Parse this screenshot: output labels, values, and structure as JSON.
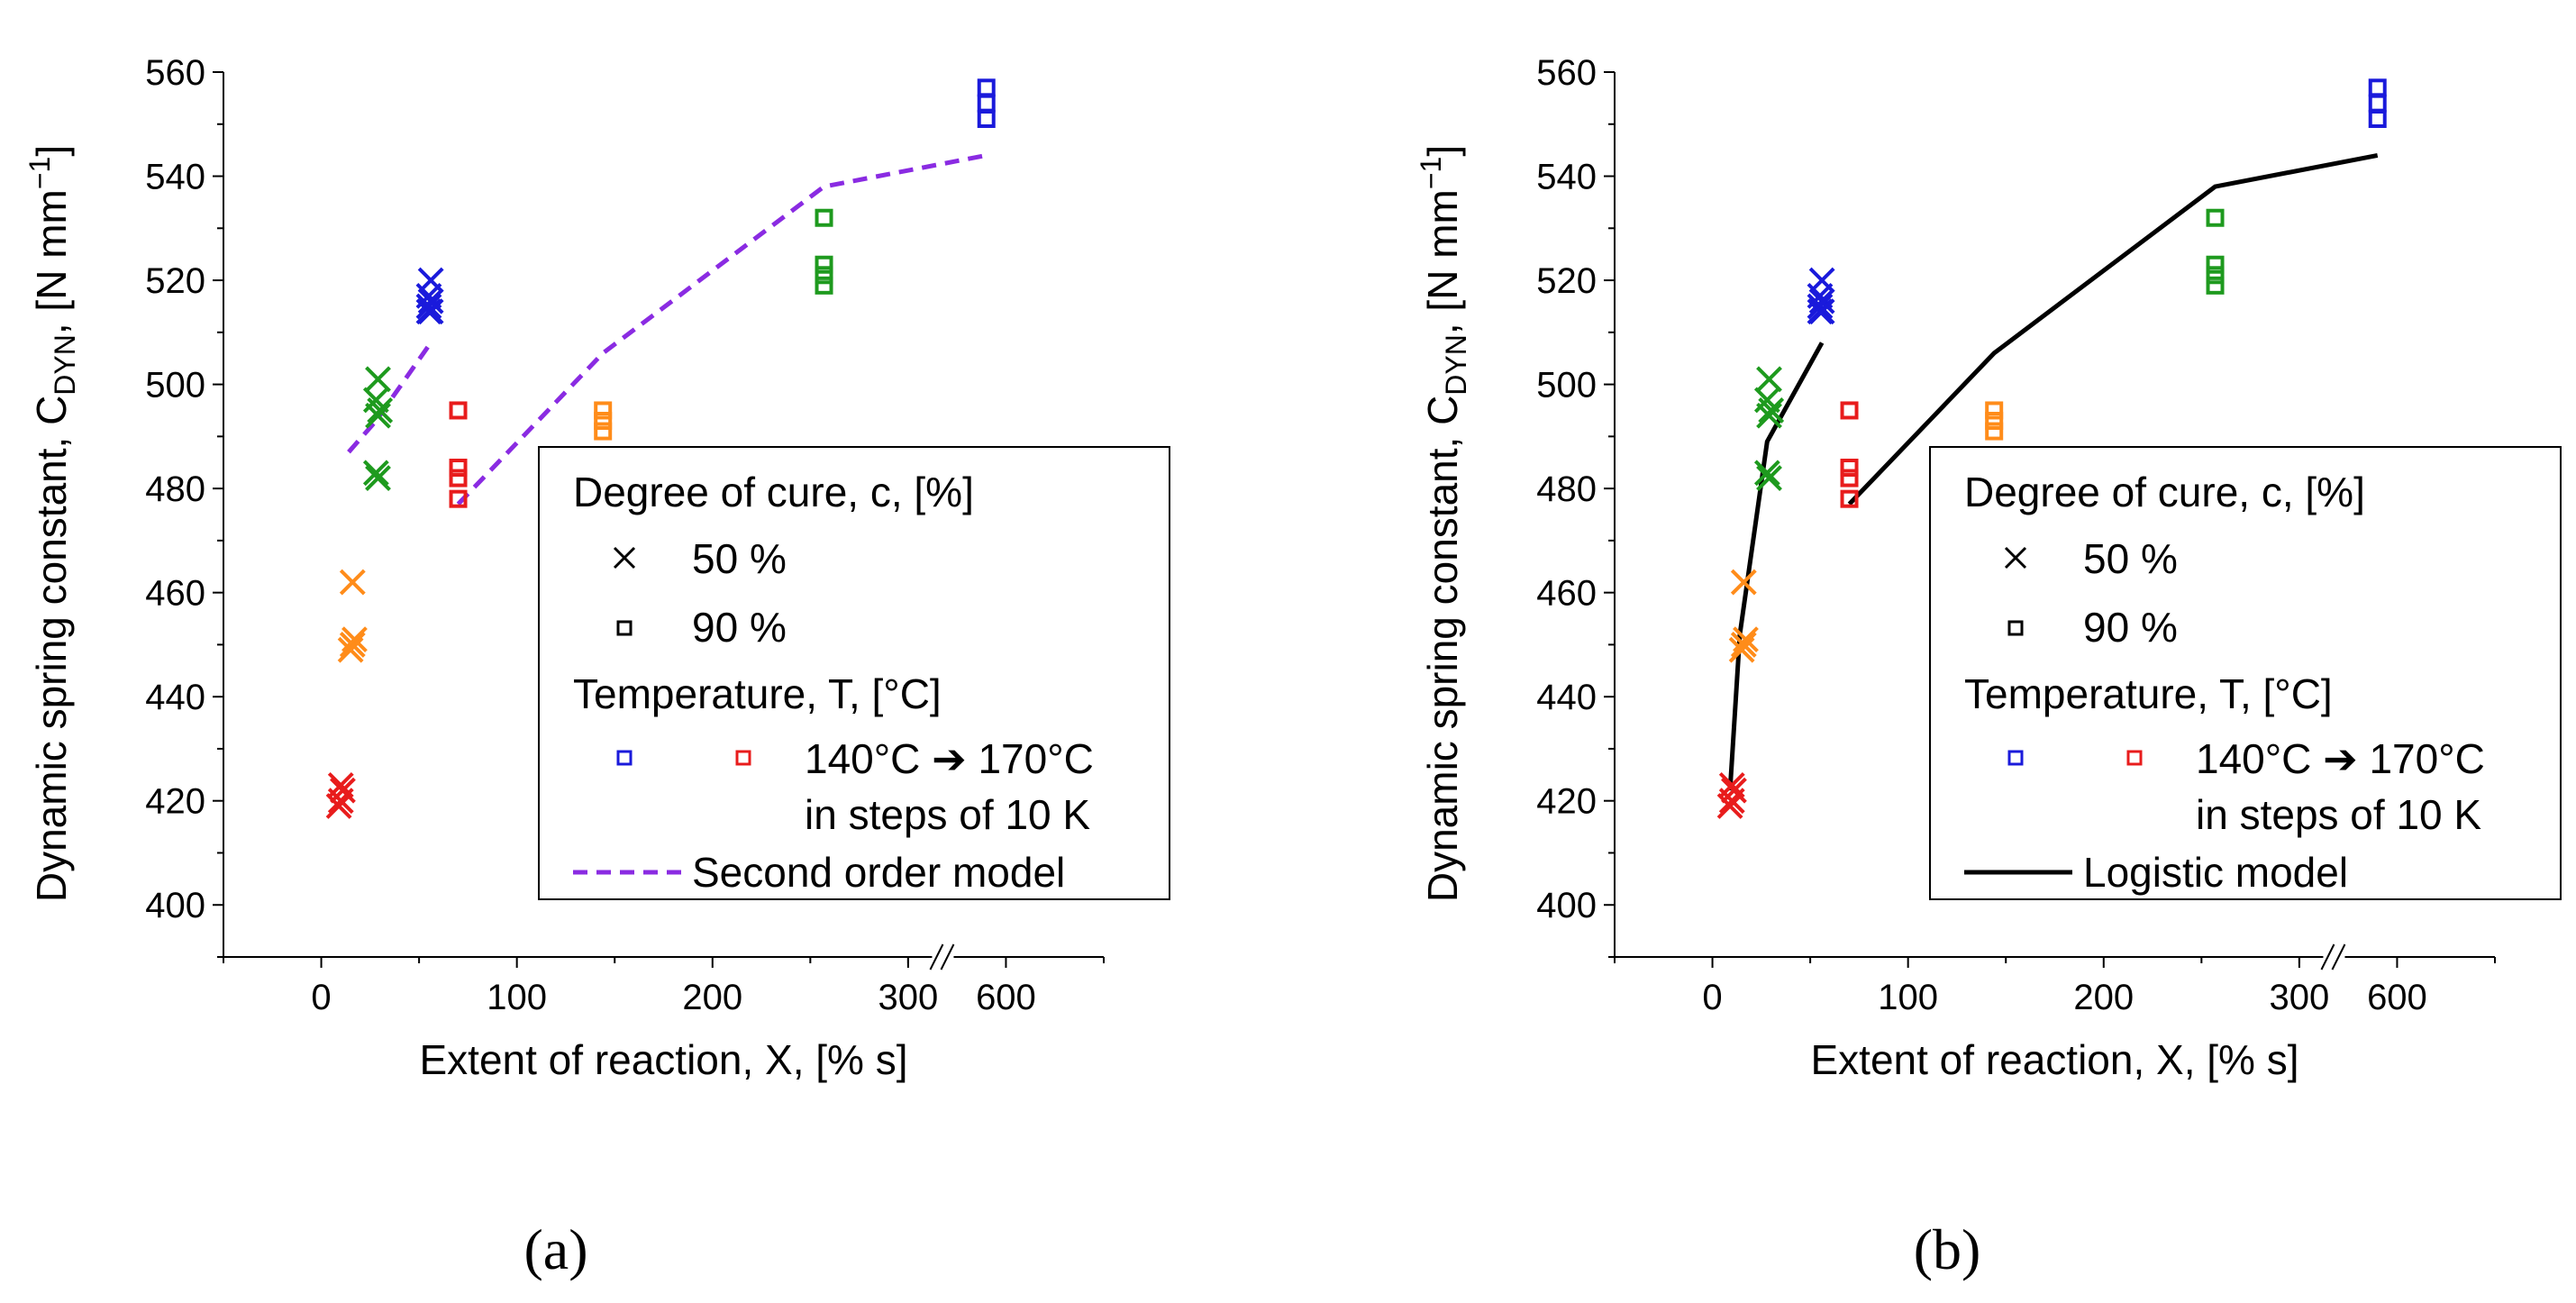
{
  "colors": {
    "140C": "#1a1adb",
    "150C": "#1e9a1e",
    "160C": "#ff8c1a",
    "170C": "#e81c1c",
    "second_order_model": "#8a2be2",
    "logistic_model": "#000000"
  },
  "chart_data": [
    {
      "type": "scatter",
      "panel_label": "(a)",
      "xlabel": "Extent of reaction, X, [% s]",
      "ylabel": "Dynamic spring constant, C_DYN, [N mm^-1]",
      "ylabel_parts": {
        "main": "Dynamic spring constant, C",
        "sub": "DYN",
        "unit": ", [N mm",
        "sup": "−1",
        "close": "]"
      },
      "xlim": [
        -50,
        650
      ],
      "ylim": [
        390,
        560
      ],
      "xticks": [
        0,
        100,
        200,
        300,
        600
      ],
      "xtick_labels": [
        "0",
        "100",
        "200",
        "300",
        "600"
      ],
      "yticks": [
        400,
        420,
        440,
        460,
        480,
        500,
        520,
        540,
        560
      ],
      "axis_break": "between 300 and 600",
      "legend": {
        "placement": "lower-right",
        "title_cure": "Degree of cure, c, [%]",
        "cure_50": "50 %",
        "cure_90": "90 %",
        "title_temp": "Temperature, T, [°C]",
        "temp_range": "140°C ➔ 170°C",
        "temp_steps": "in steps of 10 K",
        "model": "Second order model"
      },
      "series": [
        {
          "color": "#e81c1c",
          "marker": "x",
          "x": [
            9,
            10,
            11,
            10
          ],
          "y": [
            419,
            420,
            422,
            423
          ]
        },
        {
          "color": "#ff8c1a",
          "marker": "x",
          "x": [
            16,
            15,
            16,
            17
          ],
          "y": [
            462,
            449,
            450,
            451
          ]
        },
        {
          "color": "#1e9a1e",
          "marker": "x",
          "x": [
            29,
            28,
            30,
            29,
            28,
            29
          ],
          "y": [
            501,
            497,
            495,
            494,
            483,
            482
          ]
        },
        {
          "color": "#1a1adb",
          "marker": "x",
          "x": [
            56,
            55,
            56,
            55,
            56,
            55
          ],
          "y": [
            520,
            517,
            516,
            515,
            514,
            514
          ]
        },
        {
          "color": "#e81c1c",
          "marker": "square",
          "x": [
            70,
            70,
            70,
            70
          ],
          "y": [
            495,
            484,
            482,
            478
          ]
        },
        {
          "color": "#ff8c1a",
          "marker": "square",
          "x": [
            144,
            144,
            144
          ],
          "y": [
            495,
            493,
            491
          ]
        },
        {
          "color": "#1e9a1e",
          "marker": "square",
          "x": [
            257,
            257,
            257,
            257
          ],
          "y": [
            532,
            523,
            521,
            519
          ]
        },
        {
          "color": "#1a1adb",
          "marker": "square",
          "x": [
            590,
            590,
            590
          ],
          "y": [
            557,
            554,
            551
          ]
        }
      ],
      "model_lines": [
        {
          "color": "#8a2be2",
          "style": "dashed",
          "x": [
            14,
            28,
            56
          ],
          "y": [
            487,
            493,
            508
          ]
        },
        {
          "color": "#8a2be2",
          "style": "dashed",
          "x": [
            70,
            144,
            257,
            590
          ],
          "y": [
            477,
            506,
            538,
            544
          ]
        }
      ]
    },
    {
      "type": "scatter",
      "panel_label": "(b)",
      "xlabel": "Extent of reaction, X, [% s]",
      "ylabel": "Dynamic spring constant, C_DYN, [N mm^-1]",
      "ylabel_parts": {
        "main": "Dynamic spring constant, C",
        "sub": "DYN",
        "unit": ", [N mm",
        "sup": "−1",
        "close": "]"
      },
      "xlim": [
        -50,
        650
      ],
      "ylim": [
        390,
        560
      ],
      "xticks": [
        0,
        100,
        200,
        300,
        600
      ],
      "xtick_labels": [
        "0",
        "100",
        "200",
        "300",
        "600"
      ],
      "yticks": [
        400,
        420,
        440,
        460,
        480,
        500,
        520,
        540,
        560
      ],
      "axis_break": "between 300 and 600",
      "legend": {
        "placement": "lower-right",
        "title_cure": "Degree of cure, c, [%]",
        "cure_50": "50 %",
        "cure_90": "90 %",
        "title_temp": "Temperature, T, [°C]",
        "temp_range": "140°C ➔ 170°C",
        "temp_steps": "in steps of 10 K",
        "model": "Logistic model"
      },
      "series": [
        {
          "color": "#e81c1c",
          "marker": "x",
          "x": [
            9,
            10,
            11,
            10
          ],
          "y": [
            419,
            420,
            422,
            423
          ]
        },
        {
          "color": "#ff8c1a",
          "marker": "x",
          "x": [
            16,
            15,
            16,
            17
          ],
          "y": [
            462,
            449,
            450,
            451
          ]
        },
        {
          "color": "#1e9a1e",
          "marker": "x",
          "x": [
            29,
            28,
            30,
            29,
            28,
            29
          ],
          "y": [
            501,
            497,
            495,
            494,
            483,
            482
          ]
        },
        {
          "color": "#1a1adb",
          "marker": "x",
          "x": [
            56,
            55,
            56,
            55,
            56,
            55
          ],
          "y": [
            520,
            517,
            516,
            515,
            514,
            514
          ]
        },
        {
          "color": "#e81c1c",
          "marker": "square",
          "x": [
            70,
            70,
            70,
            70
          ],
          "y": [
            495,
            484,
            482,
            478
          ]
        },
        {
          "color": "#ff8c1a",
          "marker": "square",
          "x": [
            144,
            144,
            144
          ],
          "y": [
            495,
            493,
            491
          ]
        },
        {
          "color": "#1e9a1e",
          "marker": "square",
          "x": [
            257,
            257,
            257,
            257
          ],
          "y": [
            532,
            523,
            521,
            519
          ]
        },
        {
          "color": "#1a1adb",
          "marker": "square",
          "x": [
            590,
            590,
            590
          ],
          "y": [
            557,
            554,
            551
          ]
        }
      ],
      "model_lines": [
        {
          "color": "#000000",
          "style": "solid",
          "x": [
            9,
            14,
            28,
            56
          ],
          "y": [
            422,
            452,
            489,
            508
          ]
        },
        {
          "color": "#000000",
          "style": "solid",
          "x": [
            70,
            144,
            257,
            590
          ],
          "y": [
            477,
            506,
            538,
            544
          ]
        }
      ]
    }
  ]
}
